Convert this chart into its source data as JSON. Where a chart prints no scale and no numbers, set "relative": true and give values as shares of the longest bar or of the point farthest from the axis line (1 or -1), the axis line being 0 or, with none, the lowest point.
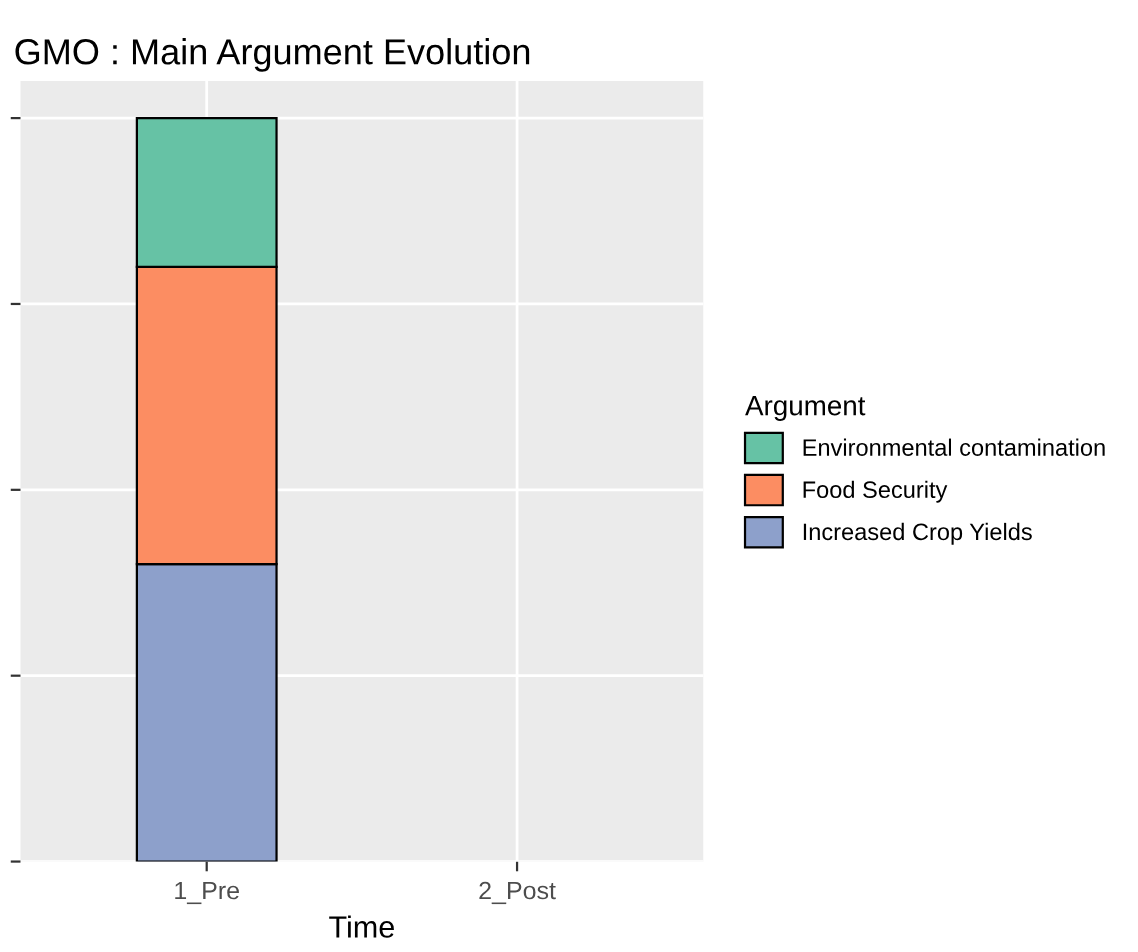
{
  "chart_data": {
    "type": "bar",
    "title": "GMO : Main Argument Evolution",
    "xlabel": "Time",
    "legend_title": "Argument",
    "categories": [
      "1_Pre",
      "2_Post"
    ],
    "series": [
      {
        "name": "Increased Crop Yields",
        "color": "#8da0cb",
        "values": [
          0.4,
          null
        ]
      },
      {
        "name": "Food Security",
        "color": "#fc8d62",
        "values": [
          0.4,
          null
        ]
      },
      {
        "name": "Environmental contamination",
        "color": "#66c2a5",
        "values": [
          0.2,
          null
        ]
      }
    ],
    "stacked": true,
    "relative": true,
    "grid": true,
    "legend": "right",
    "tick_labels": "x"
  }
}
